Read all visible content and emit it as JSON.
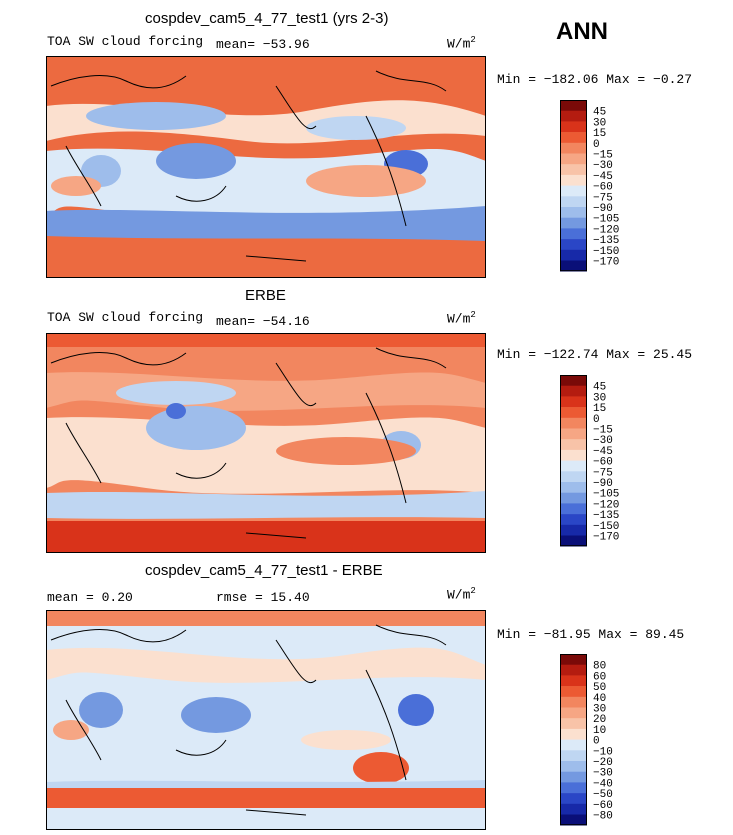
{
  "season": "ANN",
  "panels": [
    {
      "title": "cospdev_cam5_4_77_test1 (yrs 2-3)",
      "left_label": "TOA SW cloud forcing",
      "mid_label": "mean= −53.96",
      "units": "W/m",
      "units_sup": "2",
      "minmax": "Min = −182.06 Max =  −0.27"
    },
    {
      "title": "ERBE",
      "left_label": "TOA SW cloud forcing",
      "mid_label": "mean= −54.16",
      "units": "W/m",
      "units_sup": "2",
      "minmax": "Min = −122.74 Max =  25.45"
    },
    {
      "title": "cospdev_cam5_4_77_test1 - ERBE",
      "left_label": "mean =   0.20",
      "mid_label": "rmse =  15.40",
      "units": "W/m",
      "units_sup": "2",
      "minmax": "Min = −81.95 Max =  89.45"
    }
  ],
  "colorbars": [
    {
      "labels": [
        "45",
        "30",
        "15",
        "0",
        "−15",
        "−30",
        "−45",
        "−60",
        "−75",
        "−90",
        "−105",
        "−120",
        "−135",
        "−150",
        "−170"
      ],
      "colors": [
        "#7a0a08",
        "#b41c10",
        "#d9331a",
        "#ec5a33",
        "#f2865f",
        "#f6a684",
        "#f8c3a8",
        "#fbe0cf",
        "#dceaf8",
        "#bfd6f2",
        "#9ebdeb",
        "#7499e0",
        "#4a6fd8",
        "#2a46c6",
        "#1729a8",
        "#0a0f78"
      ]
    },
    {
      "labels": [
        "45",
        "30",
        "15",
        "0",
        "−15",
        "−30",
        "−45",
        "−60",
        "−75",
        "−90",
        "−105",
        "−120",
        "−135",
        "−150",
        "−170"
      ],
      "colors": [
        "#7a0a08",
        "#b41c10",
        "#d9331a",
        "#ec5a33",
        "#f2865f",
        "#f6a684",
        "#f8c3a8",
        "#fbe0cf",
        "#dceaf8",
        "#bfd6f2",
        "#9ebdeb",
        "#7499e0",
        "#4a6fd8",
        "#2a46c6",
        "#1729a8",
        "#0a0f78"
      ]
    },
    {
      "labels": [
        "80",
        "60",
        "50",
        "40",
        "30",
        "20",
        "10",
        "0",
        "−10",
        "−20",
        "−30",
        "−40",
        "−50",
        "−60",
        "−80"
      ],
      "colors": [
        "#7a0a08",
        "#b41c10",
        "#d9331a",
        "#ec5a33",
        "#f2865f",
        "#f6a684",
        "#f8c3a8",
        "#fbe0cf",
        "#dceaf8",
        "#bfd6f2",
        "#9ebdeb",
        "#7499e0",
        "#4a6fd8",
        "#2a46c6",
        "#1729a8",
        "#0a0f78"
      ]
    }
  ],
  "chart_data": [
    {
      "type": "heatmap",
      "title": "cospdev_cam5_4_77_test1 (yrs 2-3)",
      "variable": "TOA SW cloud forcing",
      "units": "W/m2",
      "mean": -53.96,
      "min": -182.06,
      "max": -0.27,
      "contour_levels": [
        -170,
        -150,
        -135,
        -120,
        -105,
        -90,
        -75,
        -60,
        -45,
        -30,
        -15,
        0,
        15,
        30,
        45
      ]
    },
    {
      "type": "heatmap",
      "title": "ERBE",
      "variable": "TOA SW cloud forcing",
      "units": "W/m2",
      "mean": -54.16,
      "min": -122.74,
      "max": 25.45,
      "contour_levels": [
        -170,
        -150,
        -135,
        -120,
        -105,
        -90,
        -75,
        -60,
        -45,
        -30,
        -15,
        0,
        15,
        30,
        45
      ]
    },
    {
      "type": "heatmap",
      "title": "cospdev_cam5_4_77_test1 - ERBE",
      "units": "W/m2",
      "mean": 0.2,
      "rmse": 15.4,
      "min": -81.95,
      "max": 89.45,
      "contour_levels": [
        -80,
        -60,
        -50,
        -40,
        -30,
        -20,
        -10,
        0,
        10,
        20,
        30,
        40,
        50,
        60,
        80
      ]
    }
  ]
}
